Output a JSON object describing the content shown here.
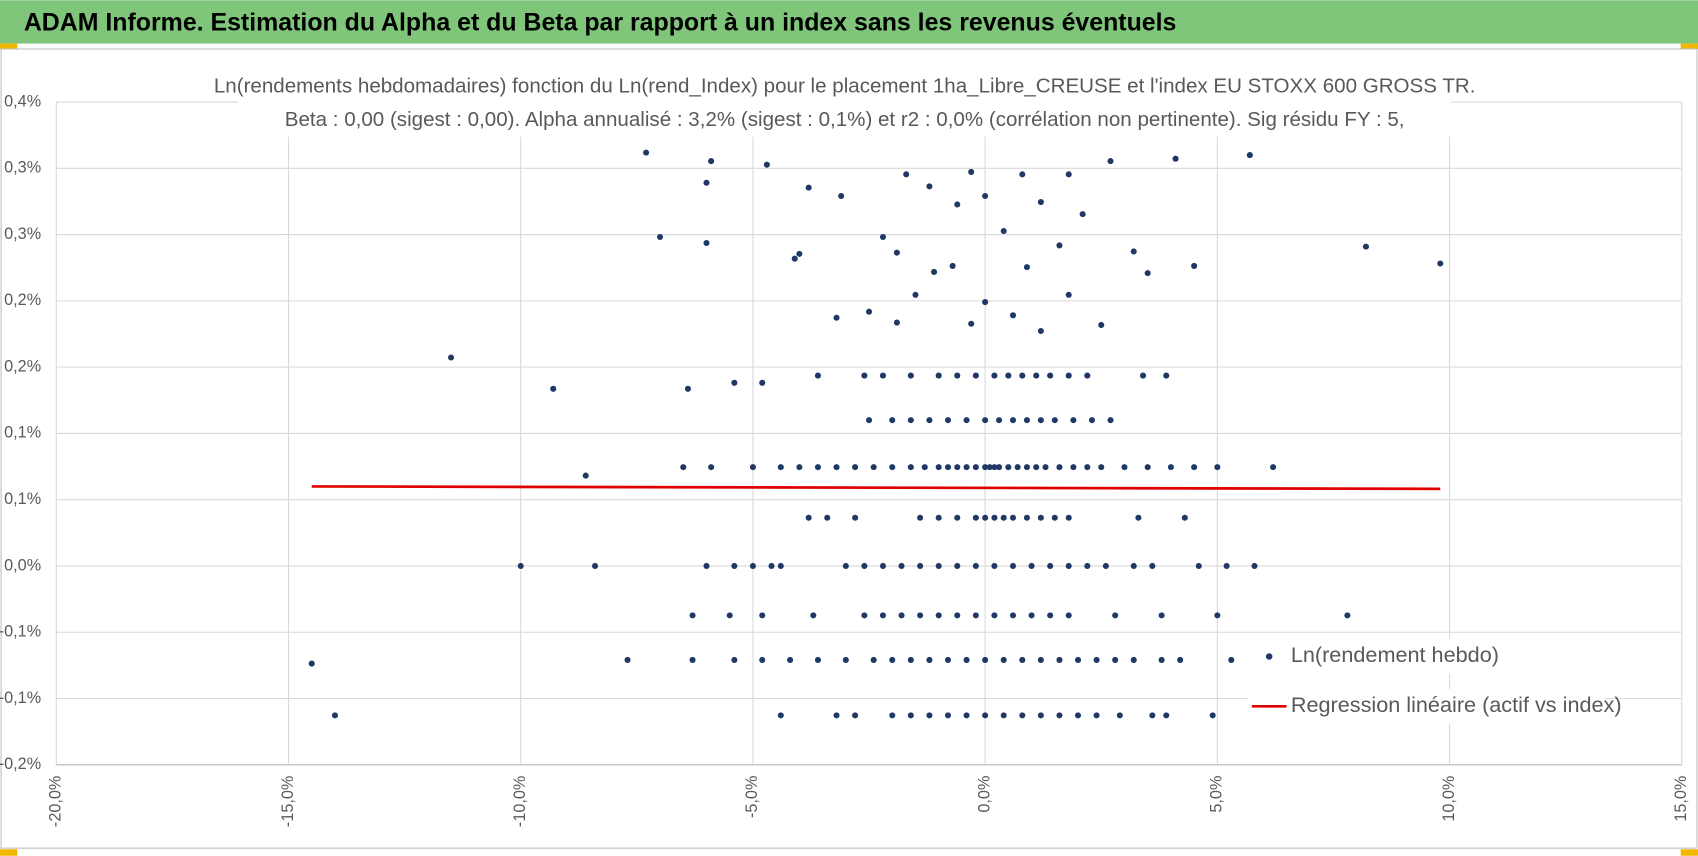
{
  "header": {
    "title": "ADAM Informe. Estimation du Alpha et du Beta par rapport à un index sans les revenus éventuels"
  },
  "chart_data": {
    "type": "scatter",
    "title": "Ln(rendements hebdomadaires) fonction du Ln(rend_Index) pour le placement 1ha_Libre_CREUSE et l'index EU STOXX 600 GROSS TR.",
    "subtitle": "Beta : 0,00 (sigest : 0,00).  Alpha annualisé : 3,2% (sigest : 0,1%) et r2 : 0,0% (corrélation non pertinente). Sig résidu FY : 5,",
    "xlim": [
      -20,
      15
    ],
    "xticks": [
      {
        "value": -20,
        "label": "-20,0%"
      },
      {
        "value": -15,
        "label": "-15,0%"
      },
      {
        "value": -10,
        "label": "-10,0%"
      },
      {
        "value": -5,
        "label": "-5,0%"
      },
      {
        "value": 0,
        "label": "0,0%"
      },
      {
        "value": 5,
        "label": "5,0%"
      },
      {
        "value": 10,
        "label": "10,0%"
      },
      {
        "value": 15,
        "label": "15,0%"
      }
    ],
    "ylim": [
      -0.165,
      0.385
    ],
    "yticks": [
      {
        "value": -0.165,
        "label": "-0,2%"
      },
      {
        "value": -0.11,
        "label": "-0,1%"
      },
      {
        "value": -0.055,
        "label": "-0,1%"
      },
      {
        "value": 0,
        "label": "0,0%"
      },
      {
        "value": 0.055,
        "label": "0,1%"
      },
      {
        "value": 0.11,
        "label": "0,1%"
      },
      {
        "value": 0.165,
        "label": "0,2%"
      },
      {
        "value": 0.22,
        "label": "0,2%"
      },
      {
        "value": 0.275,
        "label": "0,3%"
      },
      {
        "value": 0.33,
        "label": "0,3%"
      },
      {
        "value": 0.385,
        "label": "0,4%"
      }
    ],
    "grid": true,
    "legend": "right",
    "series": [
      {
        "name": "Ln(rendement hebdo)",
        "color": "#203864",
        "x": [
          -10,
          -8.4,
          -6,
          -5.4,
          -5,
          -4.6,
          -4.4,
          -3,
          -2.6,
          -2.2,
          -1.8,
          -1.4,
          -1,
          -0.6,
          -0.2,
          0.2,
          0.6,
          1,
          1.4,
          1.8,
          2.2,
          2.6,
          3.2,
          3.6,
          4.6,
          5.2,
          5.8,
          -3.8,
          -3.4,
          -2.8,
          -1.4,
          -1,
          -0.6,
          -0.2,
          0,
          0.2,
          0.4,
          0.6,
          0.9,
          1.2,
          1.5,
          1.8,
          3.3,
          4.3,
          -6.5,
          -5.9,
          -5,
          -4.4,
          -4,
          -3.6,
          -3.2,
          -2.8,
          -2.4,
          -2,
          -1.6,
          -1.3,
          -1,
          -0.8,
          -0.6,
          -0.4,
          -0.2,
          0,
          0.1,
          0.2,
          0.3,
          0.5,
          0.7,
          0.9,
          1.1,
          1.3,
          1.6,
          1.9,
          2.2,
          2.5,
          3,
          3.5,
          4,
          4.5,
          5,
          6.2,
          -2.5,
          -2,
          -1.6,
          -1.2,
          -0.8,
          -0.4,
          0,
          0.3,
          0.6,
          0.9,
          1.2,
          1.5,
          1.9,
          2.3,
          2.7,
          -3.6,
          -2.6,
          -2.2,
          -1.6,
          -1,
          -0.6,
          -0.2,
          0.2,
          0.5,
          0.8,
          1.1,
          1.4,
          1.8,
          2.2,
          3.4,
          3.9,
          -6.3,
          -5.5,
          -4.8,
          -3.7,
          -2.6,
          -2.2,
          -1.8,
          -1.4,
          -1,
          -0.6,
          -0.2,
          0.2,
          0.6,
          1,
          1.4,
          1.8,
          2.8,
          3.8,
          5,
          7.8,
          -7.7,
          -6.3,
          -5.4,
          -4.8,
          -4.2,
          -3.6,
          -3,
          -2.4,
          -2,
          -1.6,
          -1.2,
          -0.8,
          -0.4,
          0,
          0.4,
          0.8,
          1.2,
          1.6,
          2,
          2.4,
          2.8,
          3.2,
          3.8,
          4.2,
          5.3,
          6.2,
          -4.4,
          -3.2,
          -2.8,
          -2,
          -1.6,
          -1.2,
          -0.8,
          -0.4,
          0,
          0.4,
          0.8,
          1.2,
          1.6,
          2,
          2.4,
          2.9,
          3.6,
          3.9,
          4.9,
          -14,
          -11.5,
          -7.3,
          -5.9,
          -4.7,
          -6,
          -7,
          -6,
          -4.1,
          -4,
          -3.8,
          -3.1,
          -3.2,
          -2.5,
          -2.2,
          -1.9,
          -1.7,
          -1.2,
          -0.6,
          -0.3,
          0,
          0.4,
          0.8,
          1.2,
          1.8,
          2.1,
          2.7,
          4.1,
          5.7,
          8.2,
          9.8,
          3.2,
          3.5,
          4.5,
          -1.1,
          -0.7,
          0,
          0.6,
          1.2,
          1.8,
          2.5,
          -1.5,
          -1.9,
          0.9,
          1.6,
          -0.3,
          -8.6,
          -9.3,
          -6.4,
          -5.4,
          -4.8,
          -14.5
        ],
        "values": [
          0,
          0,
          0,
          0,
          0,
          0,
          0,
          0,
          0,
          0,
          0,
          0,
          0,
          0,
          0,
          0,
          0,
          0,
          0,
          0,
          0,
          0,
          0,
          0,
          0,
          0,
          0,
          0.04,
          0.04,
          0.04,
          0.04,
          0.04,
          0.04,
          0.04,
          0.04,
          0.04,
          0.04,
          0.04,
          0.04,
          0.04,
          0.04,
          0.04,
          0.04,
          0.04,
          0.082,
          0.082,
          0.082,
          0.082,
          0.082,
          0.082,
          0.082,
          0.082,
          0.082,
          0.082,
          0.082,
          0.082,
          0.082,
          0.082,
          0.082,
          0.082,
          0.082,
          0.082,
          0.082,
          0.082,
          0.082,
          0.082,
          0.082,
          0.082,
          0.082,
          0.082,
          0.082,
          0.082,
          0.082,
          0.082,
          0.082,
          0.082,
          0.082,
          0.082,
          0.082,
          0.082,
          0.121,
          0.121,
          0.121,
          0.121,
          0.121,
          0.121,
          0.121,
          0.121,
          0.121,
          0.121,
          0.121,
          0.121,
          0.121,
          0.121,
          0.121,
          0.158,
          0.158,
          0.158,
          0.158,
          0.158,
          0.158,
          0.158,
          0.158,
          0.158,
          0.158,
          0.158,
          0.158,
          0.158,
          0.158,
          0.158,
          0.158,
          -0.041,
          -0.041,
          -0.041,
          -0.041,
          -0.041,
          -0.041,
          -0.041,
          -0.041,
          -0.041,
          -0.041,
          -0.041,
          -0.041,
          -0.041,
          -0.041,
          -0.041,
          -0.041,
          -0.041,
          -0.041,
          -0.041,
          -0.041,
          -0.078,
          -0.078,
          -0.078,
          -0.078,
          -0.078,
          -0.078,
          -0.078,
          -0.078,
          -0.078,
          -0.078,
          -0.078,
          -0.078,
          -0.078,
          -0.078,
          -0.078,
          -0.078,
          -0.078,
          -0.078,
          -0.078,
          -0.078,
          -0.078,
          -0.078,
          -0.078,
          -0.078,
          -0.078,
          -0.078,
          -0.124,
          -0.124,
          -0.124,
          -0.124,
          -0.124,
          -0.124,
          -0.124,
          -0.124,
          -0.124,
          -0.124,
          -0.124,
          -0.124,
          -0.124,
          -0.124,
          -0.124,
          -0.124,
          -0.124,
          -0.124,
          -0.124,
          -0.124,
          0.173,
          0.343,
          0.336,
          0.333,
          0.318,
          0.273,
          0.268,
          0.255,
          0.259,
          0.314,
          0.307,
          0.206,
          0.211,
          0.273,
          0.26,
          0.325,
          0.315,
          0.3,
          0.327,
          0.307,
          0.278,
          0.325,
          0.302,
          0.325,
          0.292,
          0.336,
          0.338,
          0.341,
          0.265,
          0.251,
          0.261,
          0.243,
          0.249,
          0.244,
          0.249,
          0.219,
          0.208,
          0.195,
          0.225,
          0.2,
          0.225,
          0.202,
          0.248,
          0.266,
          0.201,
          0.075,
          0.147,
          0.147,
          0.152,
          0.152,
          -0.081
        ]
      },
      {
        "name": "Regression linéaire (actif vs index)",
        "color": "#e00000",
        "type": "line",
        "x": [
          -14.5,
          9.8
        ],
        "values": [
          0.066,
          0.064
        ]
      }
    ]
  }
}
